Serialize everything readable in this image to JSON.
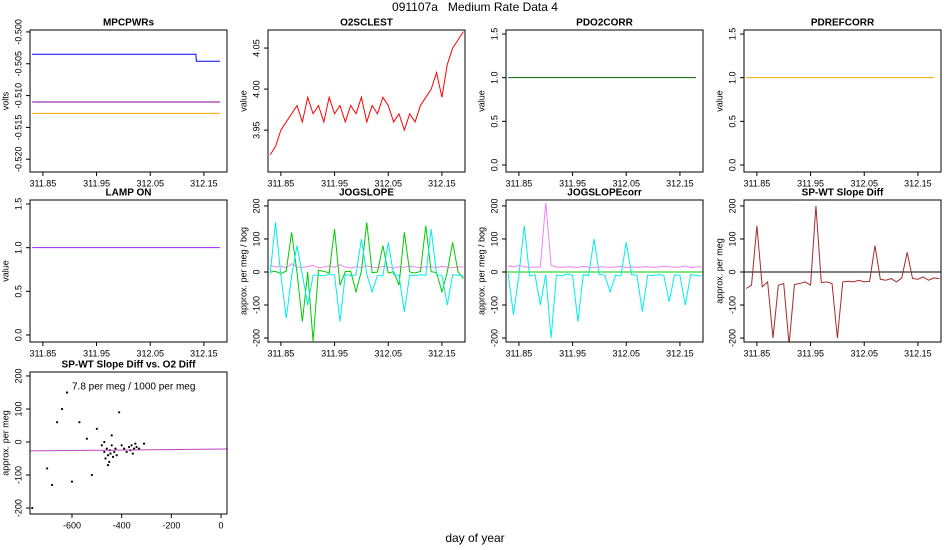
{
  "title": "091107a   Medium Rate Data 4",
  "xlabel": "day of year",
  "chart_data": [
    {
      "type": "line",
      "title": "MPCPWRs",
      "ylabel": "volts",
      "xlim": [
        311.826,
        312.193
      ],
      "xticks": [
        311.85,
        311.95,
        312.05,
        312.15
      ],
      "ylim": [
        -0.522,
        -0.4997
      ],
      "yticks": [
        {
          "value": -0.5,
          "label": "-0.500"
        },
        {
          "value": -0.505,
          "label": "-0.505"
        },
        {
          "value": -0.51,
          "label": "-0.510"
        },
        {
          "value": -0.515,
          "label": "-0.515"
        },
        {
          "value": -0.52,
          "label": "-0.520"
        }
      ],
      "x": [
        311.83,
        312.135,
        312.136,
        312.18
      ],
      "series": [
        {
          "color": "#0000ff",
          "values": [
            -0.5035,
            -0.5035,
            -0.5046,
            -0.5046
          ]
        },
        {
          "color": "#8b008b",
          "values": [
            -0.511,
            -0.511,
            -0.511,
            -0.511
          ]
        },
        {
          "color": "#ffa500",
          "values": [
            -0.5128,
            -0.5128,
            -0.5128,
            -0.5128
          ]
        }
      ]
    },
    {
      "type": "line",
      "title": "O2SCLEST",
      "ylabel": "value",
      "xlim": [
        311.826,
        312.193
      ],
      "xticks": [
        311.85,
        311.95,
        312.05,
        312.15
      ],
      "ylim": [
        3.899,
        4.072
      ],
      "yticks": [
        3.95,
        {
          "value": 4.0,
          "label": "4.00"
        },
        4.05
      ],
      "x": [
        311.83,
        311.84,
        311.85,
        311.86,
        311.87,
        311.88,
        311.89,
        311.9,
        311.91,
        311.92,
        311.93,
        311.94,
        311.95,
        311.96,
        311.97,
        311.98,
        311.99,
        312.0,
        312.01,
        312.02,
        312.03,
        312.04,
        312.05,
        312.06,
        312.07,
        312.08,
        312.09,
        312.1,
        312.11,
        312.12,
        312.13,
        312.14,
        312.15,
        312.16,
        312.17,
        312.18,
        312.19
      ],
      "series": [
        {
          "color": "#ff0000",
          "values": [
            3.92,
            3.93,
            3.95,
            3.96,
            3.97,
            3.98,
            3.96,
            3.99,
            3.97,
            3.98,
            3.96,
            3.99,
            3.97,
            3.98,
            3.96,
            3.98,
            3.97,
            3.99,
            3.96,
            3.98,
            3.97,
            3.99,
            3.98,
            3.96,
            3.97,
            3.95,
            3.97,
            3.96,
            3.98,
            3.99,
            4.0,
            4.02,
            3.99,
            4.03,
            4.05,
            4.06,
            4.07
          ]
        }
      ]
    },
    {
      "type": "line",
      "title": "PDO2CORR",
      "ylabel": "value",
      "xlim": [
        311.826,
        312.193
      ],
      "xticks": [
        311.85,
        311.95,
        312.05,
        312.15
      ],
      "ylim": [
        -0.08,
        1.546
      ],
      "yticks": [
        {
          "value": 0,
          "label": "0.0"
        },
        0.5,
        {
          "value": 1,
          "label": "1.0"
        },
        1.5
      ],
      "x": [
        311.83,
        312.18
      ],
      "series": [
        {
          "color": "#006400",
          "values": [
            1,
            1
          ]
        }
      ]
    },
    {
      "type": "line",
      "title": "PDREFCORR",
      "ylabel": "value",
      "xlim": [
        311.826,
        312.193
      ],
      "xticks": [
        311.85,
        311.95,
        312.05,
        312.15
      ],
      "ylim": [
        -0.08,
        1.546
      ],
      "yticks": [
        {
          "value": 0,
          "label": "0.0"
        },
        0.5,
        {
          "value": 1,
          "label": "1.0"
        },
        1.5
      ],
      "x": [
        311.83,
        312.18
      ],
      "series": [
        {
          "color": "#ffa500",
          "values": [
            1,
            1
          ]
        }
      ]
    },
    {
      "type": "line",
      "title": "LAMP ON",
      "ylabel": "value",
      "xlim": [
        311.826,
        312.193
      ],
      "xticks": [
        311.85,
        311.95,
        312.05,
        312.15
      ],
      "ylim": [
        -0.08,
        1.546
      ],
      "yticks": [
        {
          "value": 0,
          "label": "0.0"
        },
        0.5,
        {
          "value": 1,
          "label": "1.0"
        },
        1.5
      ],
      "x": [
        311.83,
        312.18
      ],
      "series": [
        {
          "color": "#a020f0",
          "values": [
            1,
            1
          ]
        }
      ]
    },
    {
      "type": "line",
      "title": "JOGSLOPE",
      "ylabel": "approx. per meg / bog",
      "xlim": [
        311.826,
        312.193
      ],
      "xticks": [
        311.85,
        311.95,
        312.05,
        312.15
      ],
      "ylim": [
        -212,
        218
      ],
      "yticks": [
        -200,
        -100,
        0,
        100,
        200
      ],
      "x": [
        311.83,
        311.84,
        311.85,
        311.86,
        311.87,
        311.88,
        311.89,
        311.9,
        311.91,
        311.92,
        311.93,
        311.94,
        311.95,
        311.96,
        311.97,
        311.98,
        311.99,
        312.0,
        312.01,
        312.02,
        312.03,
        312.04,
        312.05,
        312.06,
        312.07,
        312.08,
        312.09,
        312.1,
        312.11,
        312.12,
        312.13,
        312.14,
        312.15,
        312.16,
        312.17,
        312.18,
        312.19
      ],
      "series": [
        {
          "color": "#ee82ee",
          "values": [
            20,
            15,
            18,
            12,
            25,
            15,
            14,
            16,
            20,
            13,
            15,
            18,
            14,
            22,
            15,
            12,
            16,
            14,
            18,
            15,
            13,
            17,
            15,
            12,
            16,
            14,
            18,
            15,
            13,
            16,
            15,
            14,
            17,
            15,
            13,
            16,
            15
          ]
        },
        {
          "color": "#00cd00",
          "values": [
            0,
            2,
            -5,
            3,
            120,
            -1,
            -150,
            0,
            -210,
            5,
            2,
            -3,
            130,
            -40,
            1,
            2,
            -60,
            3,
            150,
            -2,
            0,
            80,
            -3,
            1,
            -40,
            120,
            0,
            -3,
            2,
            140,
            1,
            -2,
            -60,
            0,
            90,
            1,
            -20
          ]
        },
        {
          "color": "#00eeee",
          "values": [
            -5,
            150,
            -10,
            -140,
            -12,
            80,
            -8,
            -100,
            -10,
            -9,
            -12,
            -6,
            -10,
            -150,
            -8,
            -11,
            -9,
            100,
            -7,
            -60,
            -10,
            -12,
            90,
            -8,
            -10,
            -120,
            -9,
            -11,
            -8,
            -10,
            130,
            -9,
            -10,
            -100,
            -8,
            -10,
            -12
          ]
        }
      ]
    },
    {
      "type": "line",
      "title": "JOGSLOPEcorr",
      "ylabel": "approx. per meg / bog",
      "xlim": [
        311.826,
        312.193
      ],
      "xticks": [
        311.85,
        311.95,
        312.05,
        312.15
      ],
      "ylim": [
        -212,
        218
      ],
      "yticks": [
        -200,
        -100,
        0,
        100,
        200
      ],
      "hline": 0,
      "hline_color": "#00cd00",
      "x": [
        311.83,
        311.84,
        311.85,
        311.86,
        311.87,
        311.88,
        311.89,
        311.9,
        311.91,
        311.92,
        311.93,
        311.94,
        311.95,
        311.96,
        311.97,
        311.98,
        311.99,
        312.0,
        312.01,
        312.02,
        312.03,
        312.04,
        312.05,
        312.06,
        312.07,
        312.08,
        312.09,
        312.1,
        312.11,
        312.12,
        312.13,
        312.14,
        312.15,
        312.16,
        312.17,
        312.18,
        312.19
      ],
      "series": [
        {
          "color": "#ee82ee",
          "values": [
            18,
            15,
            20,
            16,
            14,
            15,
            15,
            210,
            20,
            15,
            14,
            16,
            15,
            14,
            17,
            15,
            13,
            16,
            15,
            14,
            15,
            17,
            13,
            16,
            14,
            15,
            16,
            14,
            15,
            17,
            16,
            14,
            15,
            18,
            13,
            15,
            16
          ]
        },
        {
          "color": "#00eeee",
          "values": [
            -5,
            -130,
            -10,
            140,
            -12,
            -8,
            -100,
            -8,
            -200,
            -9,
            -12,
            -6,
            -10,
            -150,
            -8,
            -11,
            100,
            -7,
            -10,
            -60,
            -10,
            -12,
            90,
            -8,
            -10,
            -120,
            -9,
            -11,
            -8,
            -10,
            -90,
            -9,
            -10,
            -100,
            -8,
            -10,
            -12
          ]
        }
      ]
    },
    {
      "type": "line",
      "title": "SP-WT Slope Diff",
      "ylabel": "approx. per meg",
      "xlim": [
        311.826,
        312.193
      ],
      "xticks": [
        311.85,
        311.95,
        312.05,
        312.15
      ],
      "ylim": [
        -212,
        218
      ],
      "yticks": [
        -200,
        -100,
        0,
        100,
        200
      ],
      "hline": 0,
      "hline_color": "#000000",
      "x": [
        311.83,
        311.84,
        311.85,
        311.86,
        311.87,
        311.88,
        311.89,
        311.9,
        311.91,
        311.92,
        311.93,
        311.94,
        311.95,
        311.96,
        311.97,
        311.98,
        311.99,
        312.0,
        312.01,
        312.02,
        312.03,
        312.04,
        312.05,
        312.06,
        312.07,
        312.08,
        312.09,
        312.1,
        312.11,
        312.12,
        312.13,
        312.14,
        312.15,
        312.16,
        312.17,
        312.18,
        312.19
      ],
      "series": [
        {
          "color": "#a52a2a",
          "values": [
            -50,
            -40,
            140,
            -45,
            -30,
            -200,
            -40,
            -35,
            -220,
            -38,
            -35,
            -30,
            -40,
            200,
            -32,
            -30,
            -35,
            -200,
            -30,
            -28,
            -30,
            -25,
            -30,
            -28,
            80,
            -22,
            -25,
            -20,
            -30,
            -18,
            60,
            -20,
            -22,
            -15,
            -25,
            -18,
            -20
          ]
        }
      ]
    },
    {
      "type": "scatter",
      "title": "SP-WT Slope Diff vs. O2 Diff",
      "ylabel": "approx. per meg",
      "xlim": [
        -769,
        24
      ],
      "xticks": [
        -600,
        -400,
        -200,
        0
      ],
      "ylim": [
        -218,
        212
      ],
      "yticks": [
        -200,
        -100,
        0,
        100,
        200
      ],
      "annotation": "7.8 per meg / 1000 per meg",
      "annotation_color": "#a020a0",
      "color": "#000000",
      "x": [
        -760,
        -700,
        -660,
        -620,
        -600,
        -570,
        -540,
        -520,
        -500,
        -480,
        -470,
        -465,
        -460,
        -455,
        -450,
        -448,
        -445,
        -440,
        -435,
        -430,
        -425,
        -420,
        -470,
        -455,
        -440,
        -410,
        -400,
        -390,
        -380,
        -370,
        -365,
        -360,
        -355,
        -350,
        -345,
        -340,
        -330,
        -310,
        -640,
        -680
      ],
      "values": [
        -200,
        -80,
        60,
        150,
        -120,
        60,
        10,
        -100,
        40,
        -10,
        -30,
        -50,
        -20,
        -40,
        -60,
        -25,
        -35,
        -10,
        -45,
        -30,
        -20,
        -40,
        0,
        -70,
        20,
        90,
        -10,
        -20,
        -30,
        -15,
        -25,
        -10,
        -35,
        -20,
        -5,
        -15,
        -20,
        -5,
        100,
        -130
      ],
      "fit_line": {
        "color": "#c040c0",
        "x": [
          -769,
          24
        ],
        "values": [
          -27,
          -21
        ]
      }
    }
  ]
}
